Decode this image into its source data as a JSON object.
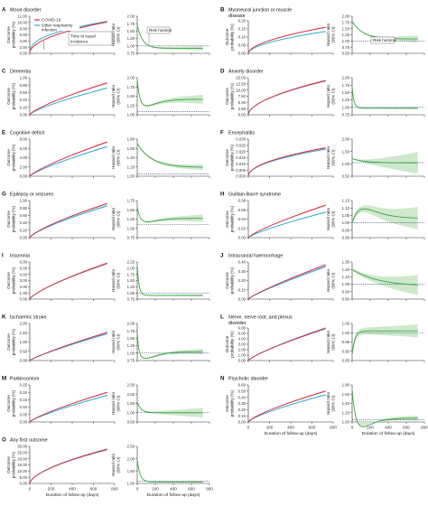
{
  "colors": {
    "covid": "#d6283b",
    "other": "#29a8d6",
    "hr_line": "#3aa645",
    "hr_band": "#cfe8cc",
    "axis": "#333333",
    "dotted": "#1b3a6b"
  },
  "legend": {
    "covid_label": "COVID-19",
    "other_label_1": "Other respiratory",
    "other_label_2": "infection"
  },
  "annotations": {
    "equal_incidence": [
      "Time to equal",
      "incidence"
    ],
    "risk_horizon": "Risk horizon"
  },
  "axis_labels": {
    "outcome_prob": [
      "Outcome",
      "probability (%)"
    ],
    "hazard_ratio": [
      "Hazard ratio",
      "(95% CI)"
    ],
    "duration": "Duration of follow-up (days)"
  },
  "chart_data": {
    "type": "line",
    "xlim": [
      0,
      800
    ],
    "x_ticks": [
      0,
      200,
      400,
      600,
      800
    ],
    "series_names": [
      "COVID-19",
      "Other respiratory infection"
    ],
    "panels": [
      {
        "letter": "A",
        "title": [
          "Mood disorder"
        ],
        "prob_ticks": [
          "0.00",
          "2.00",
          "4.00",
          "6.00",
          "8.00",
          "10.00",
          "12.00"
        ],
        "prob_max": 12,
        "covid_end": 10.2,
        "other_end": 10.3,
        "covid_k": 0.5,
        "other_k": 0.4,
        "hr_ticks": [
          "0.75",
          "1.00",
          "1.25",
          "1.50",
          "1.75",
          "2.00"
        ],
        "hr_min": 0.75,
        "hr_max": 2.0,
        "hr_start": 1.7,
        "hr_end": 0.92,
        "hr_decay": 60,
        "hr_band_end": 0.06,
        "eq_day": 130
      },
      {
        "letter": "B",
        "title": [
          "Myoneural junction or muscle",
          "disease"
        ],
        "prob_ticks": [
          "0.00",
          "0.05",
          "0.10",
          "0.15",
          "0.20"
        ],
        "prob_max": 0.2,
        "covid_end": 0.16,
        "other_end": 0.135,
        "covid_k": 0.55,
        "other_k": 0.55,
        "hr_ticks": [
          "0.50",
          "0.75",
          "1.00",
          "1.25",
          "1.50",
          "1.75",
          "2.00"
        ],
        "hr_min": 0.5,
        "hr_max": 2.0,
        "hr_start": 1.8,
        "hr_end": 1.08,
        "hr_decay": 120,
        "hr_band_end": 0.12
      },
      {
        "letter": "C",
        "title": [
          "Dementia"
        ],
        "prob_ticks": [
          "0.00",
          "0.20",
          "0.40",
          "0.60",
          "0.80",
          "1.00"
        ],
        "prob_max": 1.0,
        "covid_end": 0.86,
        "other_end": 0.72,
        "covid_k": 0.75,
        "other_k": 0.75,
        "hr_ticks": [
          "1.00",
          "1.25",
          "1.50",
          "1.75",
          "2.00"
        ],
        "hr_min": 0.9,
        "hr_max": 2.0,
        "hr_start": 1.95,
        "hr_end": 1.36,
        "hr_decay": 25,
        "hr_band_end": 0.12,
        "dip": true
      },
      {
        "letter": "D",
        "title": [
          "Anxiety disorder"
        ],
        "prob_ticks": [
          "0.00",
          "2.50",
          "5.00",
          "7.50",
          "10.00",
          "12.50",
          "15.00"
        ],
        "prob_max": 15,
        "covid_end": 13.8,
        "other_end": 13.8,
        "covid_k": 0.55,
        "other_k": 0.55,
        "hr_ticks": [
          "0.75",
          "1.00",
          "1.25",
          "1.50",
          "1.75",
          "2.00"
        ],
        "hr_min": 0.75,
        "hr_max": 2.0,
        "hr_start": 1.7,
        "hr_end": 0.97,
        "hr_decay": 20,
        "hr_band_end": 0.02,
        "eq_day": 60
      },
      {
        "letter": "E",
        "title": [
          "Cognitive deficit"
        ],
        "prob_ticks": [
          "0.00",
          "2.00",
          "4.00",
          "6.00",
          "8.00"
        ],
        "prob_max": 8,
        "covid_end": 7.4,
        "other_end": 6.4,
        "covid_k": 0.8,
        "other_k": 0.8,
        "hr_ticks": [
          "1.00",
          "1.20",
          "1.40",
          "1.60",
          "1.80"
        ],
        "hr_min": 0.95,
        "hr_max": 1.8,
        "hr_start": 1.7,
        "hr_end": 1.15,
        "hr_decay": 160,
        "hr_band_end": 0.05
      },
      {
        "letter": "F",
        "title": [
          "Encephalitis"
        ],
        "prob_ticks": [
          "0.000",
          "0.005",
          "0.010",
          "0.015",
          "0.020",
          "0.025",
          "0.030"
        ],
        "prob_max": 0.03,
        "covid_end": 0.023,
        "other_end": 0.022,
        "covid_k": 0.5,
        "other_k": 0.5,
        "hr_ticks": [
          "0.50",
          "1.00",
          "1.50",
          "2.00"
        ],
        "hr_min": 0.3,
        "hr_max": 2.2,
        "hr_start": 1.2,
        "hr_end": 0.98,
        "hr_decay": 150,
        "hr_band_end": 0.55,
        "gentle": true
      },
      {
        "letter": "G",
        "title": [
          "Epilepsy or seizures"
        ],
        "prob_ticks": [
          "0.00",
          "0.20",
          "0.40",
          "0.60",
          "0.80",
          "1.00"
        ],
        "prob_max": 1.0,
        "covid_end": 0.92,
        "other_end": 0.86,
        "covid_k": 0.75,
        "other_k": 0.75,
        "hr_ticks": [
          "0.75",
          "1.00",
          "1.25",
          "1.50",
          "1.75"
        ],
        "hr_min": 0.6,
        "hr_max": 1.75,
        "hr_start": 1.55,
        "hr_end": 1.2,
        "hr_decay": 30,
        "hr_band_end": 0.1,
        "dip": true
      },
      {
        "letter": "H",
        "title": [
          "Guillain-Barré syndrome"
        ],
        "prob_ticks": [
          "0.00",
          "0.02",
          "0.04",
          "0.06",
          "0.08"
        ],
        "prob_max": 0.08,
        "covid_end": 0.07,
        "other_end": 0.055,
        "covid_k": 0.8,
        "other_k": 0.8,
        "hr_ticks": [
          "0.90",
          "0.95",
          "1.00",
          "1.05",
          "1.10",
          "1.15"
        ],
        "hr_min": 0.9,
        "hr_max": 1.15,
        "hr_start": 1.0,
        "hr_end": 1.03,
        "hr_decay": 200,
        "hr_band_end": 0.06,
        "hump": true
      },
      {
        "letter": "I",
        "title": [
          "Insomnia"
        ],
        "prob_ticks": [
          "0.00",
          "1.00",
          "2.00",
          "3.00",
          "4.00",
          "5.00",
          "6.00"
        ],
        "prob_max": 6,
        "covid_end": 5.8,
        "other_end": 5.8,
        "covid_k": 0.75,
        "other_k": 0.75,
        "hr_ticks": [
          "0.75",
          "1.00",
          "1.25",
          "1.50",
          "1.75",
          "2.00",
          "2.25"
        ],
        "hr_min": 0.75,
        "hr_max": 2.25,
        "hr_start": 2.1,
        "hr_end": 0.9,
        "hr_decay": 20,
        "hr_band_end": 0.03,
        "eq_day": 100
      },
      {
        "letter": "J",
        "title": [
          "Intracranial haemorrhage"
        ],
        "prob_ticks": [
          "0.00",
          "0.10",
          "0.20",
          "0.30",
          "0.40"
        ],
        "prob_max": 0.4,
        "covid_end": 0.37,
        "other_end": 0.35,
        "covid_k": 0.85,
        "other_k": 0.85,
        "hr_ticks": [
          "0.80",
          "0.90",
          "1.00",
          "1.10",
          "1.20",
          "1.30"
        ],
        "hr_min": 0.8,
        "hr_max": 1.3,
        "hr_start": 1.2,
        "hr_end": 0.97,
        "hr_decay": 300,
        "hr_band_end": 0.12,
        "gentle": true
      },
      {
        "letter": "K",
        "title": [
          "Ischaemic stroke"
        ],
        "prob_ticks": [
          "0.00",
          "0.50",
          "1.00",
          "1.50",
          "2.00"
        ],
        "prob_max": 2.0,
        "covid_end": 1.52,
        "other_end": 1.45,
        "covid_k": 0.85,
        "other_k": 0.85,
        "hr_ticks": [
          "0.75",
          "1.00",
          "1.25",
          "1.50",
          "1.75",
          "2.00"
        ],
        "hr_min": 0.75,
        "hr_max": 2.0,
        "hr_start": 1.7,
        "hr_end": 1.05,
        "hr_decay": 15,
        "hr_band_end": 0.08,
        "dip": true
      },
      {
        "letter": "L",
        "title": [
          "Nerve, nerve root, and plexus",
          "disorder"
        ],
        "prob_ticks": [
          "0.00",
          "1.00",
          "2.00",
          "3.00",
          "4.00",
          "5.00",
          "6.00"
        ],
        "prob_max": 6,
        "covid_end": 5.9,
        "other_end": 6.0,
        "covid_k": 0.8,
        "other_k": 0.8,
        "hr_ticks": [
          "0.85",
          "0.90",
          "0.95",
          "1.00",
          "1.05"
        ],
        "hr_min": 0.85,
        "hr_max": 1.05,
        "hr_start": 0.88,
        "hr_end": 1.01,
        "hr_decay": 30,
        "hr_band_end": 0.02,
        "rise": true
      },
      {
        "letter": "M",
        "title": [
          "Parkinsonism"
        ],
        "prob_ticks": [
          "0.00",
          "0.05",
          "0.10",
          "0.15",
          "0.20",
          "0.25"
        ],
        "prob_max": 0.25,
        "covid_end": 0.2,
        "other_end": 0.18,
        "covid_k": 0.8,
        "other_k": 0.8,
        "hr_ticks": [
          "0.50",
          "1.00",
          "1.50",
          "2.00",
          "2.50"
        ],
        "hr_min": 0.5,
        "hr_max": 2.5,
        "hr_start": 1.6,
        "hr_end": 1.0,
        "hr_decay": 40,
        "hr_band_end": 0.25
      },
      {
        "letter": "N",
        "title": [
          "Psychotic disorder"
        ],
        "prob_ticks": [
          "0.00",
          "0.10",
          "0.20",
          "0.30",
          "0.40",
          "0.50",
          "0.60"
        ],
        "prob_max": 0.6,
        "covid_end": 0.5,
        "other_end": 0.44,
        "covid_k": 0.75,
        "other_k": 0.75,
        "hr_ticks": [
          "1.00",
          "1.20",
          "1.40",
          "1.60",
          "1.80"
        ],
        "hr_min": 0.95,
        "hr_max": 1.8,
        "hr_start": 1.7,
        "hr_end": 1.04,
        "hr_decay": 35,
        "hr_band_end": 0.04,
        "dip": true
      },
      {
        "letter": "O",
        "title": [
          "Any first outcome"
        ],
        "prob_ticks": [
          "0.00",
          "5.00",
          "10.00",
          "15.00",
          "20.00",
          "25.00",
          "30.00"
        ],
        "prob_max": 30,
        "covid_end": 27.5,
        "other_end": 27.8,
        "covid_k": 0.6,
        "other_k": 0.6,
        "hr_ticks": [
          "1.00",
          "1.50",
          "2.00",
          "2.50"
        ],
        "hr_min": 0.9,
        "hr_max": 2.6,
        "hr_start": 2.0,
        "hr_end": 0.97,
        "hr_decay": 30,
        "hr_band_end": 0.02
      }
    ]
  }
}
